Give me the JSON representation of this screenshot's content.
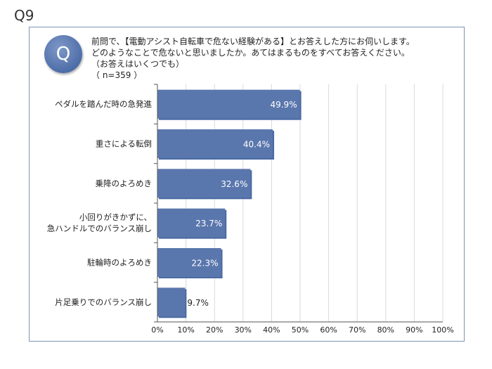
{
  "slide": {
    "label": "Q9",
    "badge": "Q",
    "question_lines": [
      "前問で、【電動アシスト自転車で危ない経験がある】とお答えした方にお伺いします。",
      "どのようなことで危ないと思いましたか。あてはまるものをすべてお答えください。",
      "（お答えはいくつでも）",
      "（ n=359 ）"
    ]
  },
  "chart_data": {
    "type": "bar",
    "orientation": "horizontal",
    "categories": [
      [
        "ペダルを踏んだ時の急発進"
      ],
      [
        "重さによる転倒"
      ],
      [
        "乗降のよろめき"
      ],
      [
        "小回りがきかずに、",
        "急ハンドルでのバランス崩し"
      ],
      [
        "駐輪時のよろめき"
      ],
      [
        "片足乗りでのバランス崩し"
      ]
    ],
    "values": [
      49.9,
      40.4,
      32.6,
      23.7,
      22.3,
      9.7
    ],
    "value_labels": [
      "49.9%",
      "40.4%",
      "32.6%",
      "23.7%",
      "22.3%",
      "9.7%"
    ],
    "xlim": [
      0,
      100
    ],
    "ticks": [
      0,
      10,
      20,
      30,
      40,
      50,
      60,
      70,
      80,
      90,
      100
    ],
    "tick_labels": [
      "0%",
      "10%",
      "20%",
      "30%",
      "40%",
      "50%",
      "60%",
      "70%",
      "80%",
      "90%",
      "100%"
    ],
    "bar_color": "#5a77ad",
    "grid": true
  }
}
